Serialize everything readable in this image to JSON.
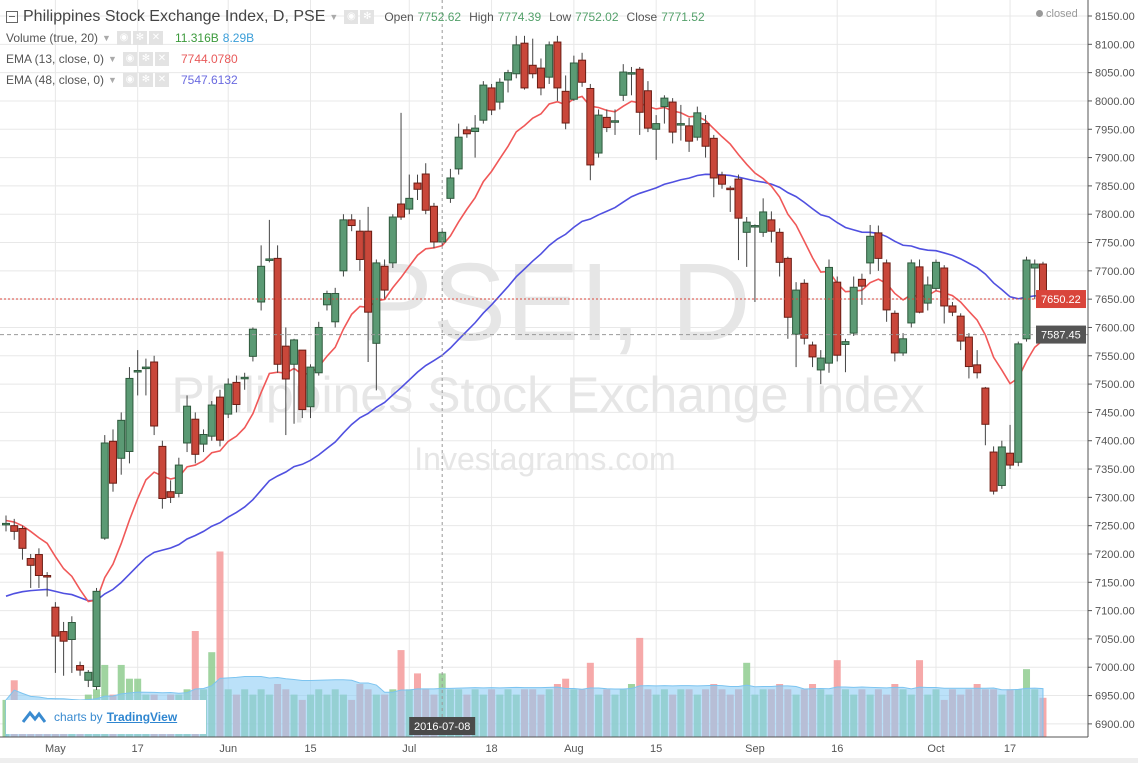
{
  "header": {
    "title": "Philippines Stock Exchange Index, D, PSE",
    "open_label": "Open",
    "open": "7752.62",
    "high_label": "High",
    "high": "7774.39",
    "low_label": "Low",
    "low": "7752.02",
    "close_label": "Close",
    "close": "7771.52",
    "status": "closed"
  },
  "indicators": [
    {
      "label": "Volume (true, 20)",
      "values": [
        "11.316B",
        "8.29B"
      ],
      "colors": [
        "#3c9a3c",
        "#3b9ed8"
      ]
    },
    {
      "label": "EMA (13, close, 0)",
      "values": [
        "7744.0780"
      ],
      "colors": [
        "#e85a5a"
      ]
    },
    {
      "label": "EMA (48, close, 0)",
      "values": [
        "7547.6132"
      ],
      "colors": [
        "#6a6ae0"
      ]
    }
  ],
  "watermark": {
    "symbol": "PSEI, D",
    "name": "Philippines Stock Exchange Index",
    "site": "Investagrams.com"
  },
  "branding": {
    "prefix": "charts by",
    "name": "TradingView"
  },
  "crosshair_date": "2016-07-08",
  "price_labels": {
    "last": "7650.22",
    "ema": "7587.45"
  },
  "colors": {
    "up": "#5b9a74",
    "down": "#c9473a",
    "ema13": "#f05858",
    "ema48": "#5050e0",
    "vol_up": "#8fcc8f",
    "vol_down": "#f49a9a",
    "vol_ma": "#8ecdf5"
  },
  "chart_data": {
    "type": "candlestick",
    "ylim": [
      6875,
      8165
    ],
    "y_ticks": [
      "8150.00",
      "8100.00",
      "8050.00",
      "8000.00",
      "7950.00",
      "7900.00",
      "7850.00",
      "7800.00",
      "7750.00",
      "7700.00",
      "7650.00",
      "7600.00",
      "7550.00",
      "7500.00",
      "7450.00",
      "7400.00",
      "7350.00",
      "7300.00",
      "7250.00",
      "7200.00",
      "7150.00",
      "7100.00",
      "7050.00",
      "7000.00",
      "6950.00",
      "6900.00"
    ],
    "x_ticks": [
      {
        "label": "May",
        "index": 6
      },
      {
        "label": "17",
        "index": 16
      },
      {
        "label": "Jun",
        "index": 27
      },
      {
        "label": "15",
        "index": 37
      },
      {
        "label": "Jul",
        "index": 49
      },
      {
        "label": "18",
        "index": 59
      },
      {
        "label": "Aug",
        "index": 69
      },
      {
        "label": "15",
        "index": 79
      },
      {
        "label": "Sep",
        "index": 91
      },
      {
        "label": "16",
        "index": 101
      },
      {
        "label": "Oct",
        "index": 113
      },
      {
        "label": "17",
        "index": 122
      }
    ],
    "ohlc": [
      [
        7254,
        7268,
        7240,
        7254
      ],
      [
        7250,
        7262,
        7225,
        7240
      ],
      [
        7245,
        7250,
        7190,
        7210
      ],
      [
        7192,
        7200,
        7140,
        7180
      ],
      [
        7199,
        7210,
        7140,
        7162
      ],
      [
        7162,
        7168,
        7125,
        7160
      ],
      [
        7106,
        7115,
        6990,
        7055
      ],
      [
        7063,
        7080,
        6985,
        7046
      ],
      [
        7049,
        7090,
        6990,
        7079
      ],
      [
        7003,
        7010,
        6985,
        6995
      ],
      [
        6977,
        6995,
        6965,
        6991
      ],
      [
        6966,
        7140,
        6960,
        7134
      ],
      [
        7228,
        7410,
        7225,
        7396
      ],
      [
        7399,
        7420,
        7310,
        7325
      ],
      [
        7369,
        7450,
        7340,
        7436
      ],
      [
        7381,
        7530,
        7360,
        7510
      ],
      [
        7524,
        7560,
        7480,
        7524
      ],
      [
        7528,
        7545,
        7480,
        7530
      ],
      [
        7539,
        7550,
        7410,
        7426
      ],
      [
        7390,
        7400,
        7280,
        7298
      ],
      [
        7310,
        7330,
        7290,
        7300
      ],
      [
        7307,
        7370,
        7300,
        7357
      ],
      [
        7396,
        7480,
        7380,
        7461
      ],
      [
        7438,
        7450,
        7360,
        7376
      ],
      [
        7394,
        7420,
        7380,
        7411
      ],
      [
        7408,
        7470,
        7400,
        7463
      ],
      [
        7477,
        7490,
        7390,
        7401
      ],
      [
        7447,
        7510,
        7440,
        7500
      ],
      [
        7503,
        7515,
        7450,
        7464
      ],
      [
        7512,
        7520,
        7490,
        7512
      ],
      [
        7549,
        7600,
        7540,
        7597
      ],
      [
        7645,
        7745,
        7630,
        7708
      ],
      [
        7721,
        7790,
        7715,
        7721
      ],
      [
        7722,
        7745,
        7520,
        7535
      ],
      [
        7567,
        7600,
        7410,
        7509
      ],
      [
        7535,
        7580,
        7430,
        7578
      ],
      [
        7560,
        7560,
        7440,
        7455
      ],
      [
        7460,
        7535,
        7440,
        7530
      ],
      [
        7520,
        7610,
        7515,
        7600
      ],
      [
        7640,
        7665,
        7630,
        7660
      ],
      [
        7610,
        7670,
        7600,
        7660
      ],
      [
        7700,
        7800,
        7690,
        7790
      ],
      [
        7790,
        7800,
        7770,
        7780
      ],
      [
        7770,
        7790,
        7700,
        7720
      ],
      [
        7770,
        7813,
        7539,
        7627
      ],
      [
        7572,
        7720,
        7489,
        7714
      ],
      [
        7708,
        7720,
        7650,
        7666
      ],
      [
        7714,
        7800,
        7705,
        7795
      ],
      [
        7818,
        7979,
        7790,
        7795
      ],
      [
        7809,
        7870,
        7800,
        7828
      ],
      [
        7855,
        7870,
        7825,
        7844
      ],
      [
        7871,
        7890,
        7800,
        7807
      ],
      [
        7814,
        7820,
        7740,
        7751
      ],
      [
        7751,
        7775,
        7745,
        7768
      ],
      [
        7828,
        7880,
        7820,
        7864
      ],
      [
        7880,
        7960,
        7870,
        7936
      ],
      [
        7949,
        7955,
        7935,
        7942
      ],
      [
        7946,
        7975,
        7900,
        7952
      ],
      [
        7966,
        8035,
        7960,
        8028
      ],
      [
        8023,
        8030,
        7975,
        7984
      ],
      [
        7998,
        8040,
        7985,
        8033
      ],
      [
        8037,
        8055,
        8015,
        8050
      ],
      [
        8048,
        8115,
        8040,
        8099
      ],
      [
        8102,
        8115,
        8020,
        8023
      ],
      [
        8063,
        8110,
        8040,
        8048
      ],
      [
        8058,
        8075,
        8010,
        8023
      ],
      [
        8042,
        8105,
        8030,
        8099
      ],
      [
        8104,
        8115,
        8000,
        8023
      ],
      [
        8017,
        8045,
        7950,
        7961
      ],
      [
        8003,
        8080,
        8000,
        8067
      ],
      [
        8072,
        8085,
        8025,
        8033
      ],
      [
        8022,
        8030,
        7860,
        7887
      ],
      [
        7908,
        7985,
        7900,
        7975
      ],
      [
        7971,
        7985,
        7945,
        7953
      ],
      [
        7965,
        7985,
        7940,
        7965
      ],
      [
        8010,
        8065,
        8000,
        8051
      ],
      [
        8050,
        8060,
        8010,
        8050
      ],
      [
        8056,
        8060,
        7940,
        7980
      ],
      [
        8018,
        8035,
        7945,
        7952
      ],
      [
        7950,
        7975,
        7896,
        7960
      ],
      [
        7990,
        8010,
        7960,
        8005
      ],
      [
        7998,
        8005,
        7925,
        7945
      ],
      [
        7960,
        7993,
        7930,
        7960
      ],
      [
        7956,
        7970,
        7910,
        7929
      ],
      [
        7936,
        7990,
        7930,
        7979
      ],
      [
        7960,
        7975,
        7900,
        7920
      ],
      [
        7934,
        7940,
        7830,
        7864
      ],
      [
        7869,
        7875,
        7845,
        7853
      ],
      [
        7846,
        7850,
        7804,
        7845
      ],
      [
        7862,
        7870,
        7719,
        7793
      ],
      [
        7768,
        7795,
        7707,
        7786
      ],
      [
        7780,
        7782,
        7645,
        7780
      ],
      [
        7768,
        7828,
        7760,
        7804
      ],
      [
        7790,
        7805,
        7750,
        7770
      ],
      [
        7768,
        7775,
        7690,
        7715
      ],
      [
        7722,
        7725,
        7580,
        7618
      ],
      [
        7588,
        7680,
        7530,
        7666
      ],
      [
        7678,
        7685,
        7570,
        7581
      ],
      [
        7569,
        7575,
        7530,
        7548
      ],
      [
        7525,
        7560,
        7500,
        7546
      ],
      [
        7537,
        7720,
        7520,
        7706
      ],
      [
        7680,
        7690,
        7540,
        7551
      ],
      [
        7570,
        7580,
        7521,
        7575
      ],
      [
        7590,
        7690,
        7585,
        7671
      ],
      [
        7685,
        7695,
        7640,
        7673
      ],
      [
        7714,
        7781,
        7694,
        7761
      ],
      [
        7767,
        7780,
        7700,
        7722
      ],
      [
        7714,
        7720,
        7610,
        7631
      ],
      [
        7625,
        7630,
        7540,
        7555
      ],
      [
        7555,
        7590,
        7550,
        7580
      ],
      [
        7608,
        7720,
        7600,
        7714
      ],
      [
        7707,
        7720,
        7625,
        7627
      ],
      [
        7643,
        7690,
        7630,
        7675
      ],
      [
        7669,
        7720,
        7665,
        7715
      ],
      [
        7705,
        7710,
        7607,
        7638
      ],
      [
        7638,
        7645,
        7620,
        7627
      ],
      [
        7620,
        7625,
        7560,
        7576
      ],
      [
        7583,
        7590,
        7510,
        7531
      ],
      [
        7534,
        7560,
        7510,
        7520
      ],
      [
        7493,
        7495,
        7392,
        7429
      ],
      [
        7380,
        7390,
        7305,
        7311
      ],
      [
        7321,
        7400,
        7315,
        7389
      ],
      [
        7378,
        7428,
        7350,
        7357
      ],
      [
        7362,
        7575,
        7355,
        7571
      ],
      [
        7580,
        7725,
        7575,
        7719
      ],
      [
        7705,
        7720,
        7650,
        7712
      ],
      [
        7712,
        7716,
        7648,
        7652
      ]
    ],
    "volume_billions": [
      7,
      10.7,
      7,
      6,
      7,
      6,
      7,
      7,
      6,
      6,
      8,
      9,
      13.6,
      8,
      13.6,
      11,
      11,
      8,
      8,
      7,
      8,
      8,
      9,
      20,
      9,
      16,
      35,
      9,
      8,
      9,
      8,
      9,
      8,
      10,
      9,
      8,
      7,
      8,
      9,
      8,
      9,
      8,
      7,
      10,
      9,
      8,
      8,
      9,
      16.4,
      9,
      12,
      9,
      8,
      12,
      9,
      9,
      8,
      9,
      8,
      9,
      8,
      9,
      8,
      9,
      9,
      8,
      9,
      10,
      11,
      9,
      9,
      14,
      8,
      9,
      8,
      9,
      10,
      18.7,
      9,
      8,
      9,
      8,
      9,
      9,
      8,
      9,
      10,
      9,
      8,
      9,
      14,
      8,
      9,
      9,
      10,
      9,
      8,
      9,
      10,
      9,
      8,
      14.5,
      9,
      8,
      9,
      8,
      9,
      8,
      10,
      9,
      8,
      14.5,
      8,
      9,
      7,
      9,
      8,
      9,
      10,
      9,
      9,
      8,
      9,
      9,
      12.8,
      9,
      7.4
    ]
  }
}
